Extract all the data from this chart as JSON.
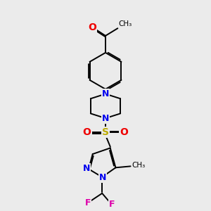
{
  "bg_color": "#ebebeb",
  "bond_color": "#000000",
  "bond_width": 1.4,
  "dbo": 0.07,
  "atom_colors": {
    "N": "#0000ee",
    "O": "#ee0000",
    "S": "#bbaa00",
    "F": "#dd00aa",
    "C": "#000000"
  },
  "fs": 9
}
